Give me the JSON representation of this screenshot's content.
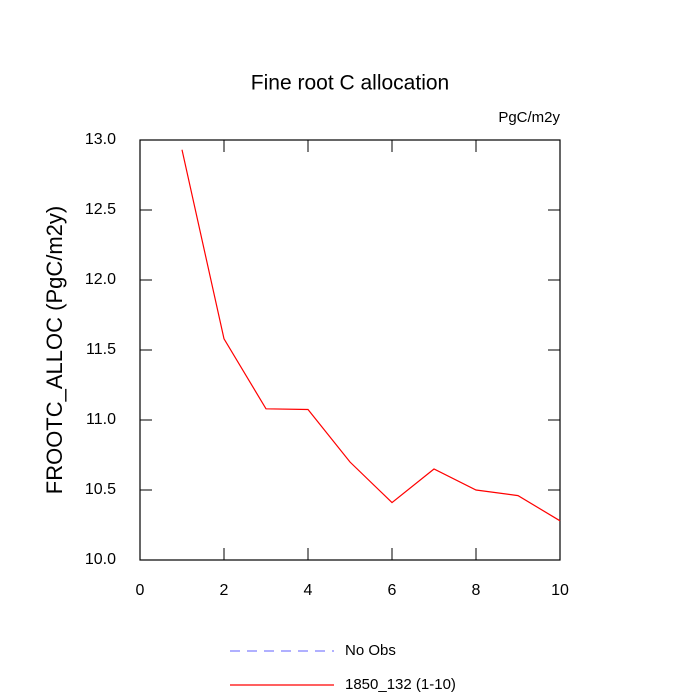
{
  "chart_data": {
    "type": "line",
    "title": "Fine root C allocation",
    "units": "PgC/m2y",
    "ylabel": "FROOTC_ALLOC  (PgC/m2y)",
    "x": [
      1,
      2,
      3,
      4,
      5,
      6,
      7,
      8,
      9,
      10
    ],
    "series": [
      {
        "name": "No Obs",
        "color": "#8080ff",
        "dashed": true,
        "values": [
          null,
          null,
          null,
          null,
          null,
          null,
          null,
          null,
          null,
          null
        ]
      },
      {
        "name": "1850_132 (1-10)",
        "color": "#ff0000",
        "values": [
          12.93,
          11.58,
          11.08,
          11.075,
          10.7,
          10.41,
          10.65,
          10.5,
          10.46,
          10.28
        ]
      }
    ],
    "xlim": [
      0,
      10
    ],
    "xticks": [
      0,
      2,
      4,
      6,
      8,
      10
    ],
    "ylim": [
      10,
      13
    ],
    "yticks": [
      {
        "value": 10,
        "label": "10.0"
      },
      10.5,
      {
        "value": 11,
        "label": "11.0"
      },
      11.5,
      {
        "value": 12,
        "label": "12.0"
      },
      12.5,
      {
        "value": 13,
        "label": "13.0"
      }
    ]
  }
}
